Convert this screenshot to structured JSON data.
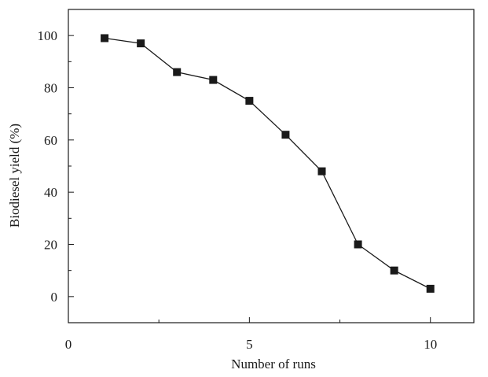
{
  "chart_data": {
    "type": "line",
    "xlabel": "Number of runs",
    "ylabel": "Biodiesel yield (%)",
    "xlim": [
      0,
      11.2
    ],
    "ylim": [
      -10,
      110
    ],
    "x_ticks": [
      0,
      5,
      10
    ],
    "x_tick_labels": [
      "0",
      "5",
      "10"
    ],
    "y_ticks": [
      0,
      20,
      40,
      60,
      80,
      100
    ],
    "y_tick_labels": [
      "0",
      "20",
      "40",
      "60",
      "80",
      "100"
    ],
    "grid": false,
    "marker": "square",
    "series": [
      {
        "color": "#1a1a1a",
        "x": [
          1,
          2,
          3,
          4,
          5,
          6,
          7,
          8,
          9,
          10
        ],
        "y": [
          99,
          97,
          86,
          83,
          75,
          62,
          48,
          20,
          10,
          3
        ]
      }
    ]
  }
}
